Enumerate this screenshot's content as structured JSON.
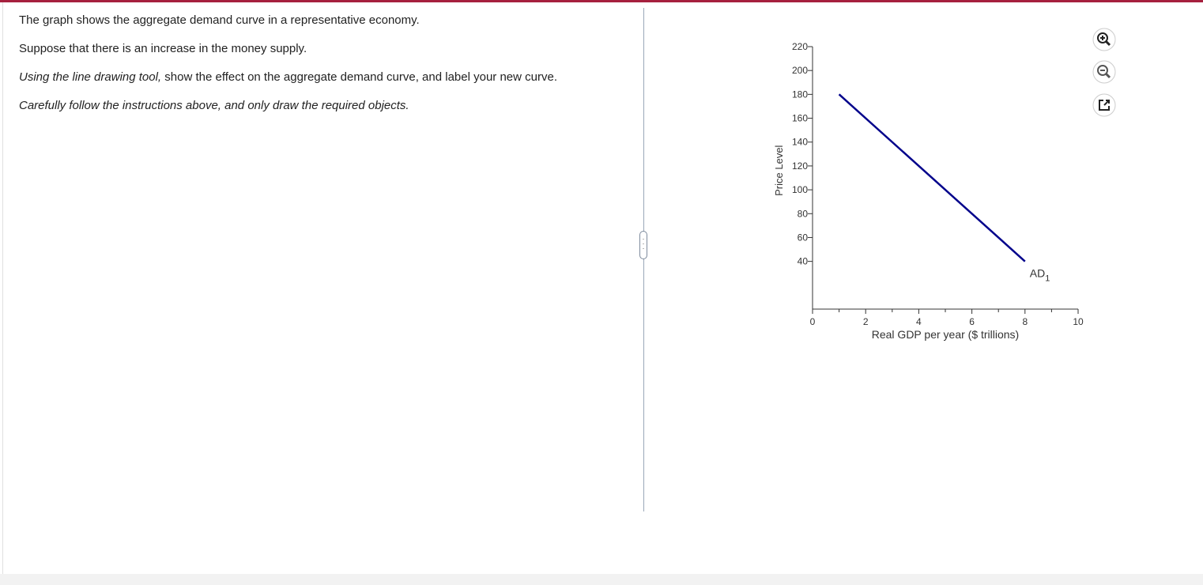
{
  "question": {
    "paragraphs": [
      {
        "parts": [
          {
            "text": "The graph shows the aggregate demand curve in a representative economy.",
            "italic": false
          }
        ]
      },
      {
        "parts": [
          {
            "text": "Suppose that there is an increase in the money supply.",
            "italic": false
          }
        ]
      },
      {
        "parts": [
          {
            "text": "Using the line drawing tool,",
            "italic": true
          },
          {
            "text": " show the effect on the aggregate demand curve, and label your new curve.",
            "italic": false
          }
        ]
      },
      {
        "parts": [
          {
            "text": "Carefully follow the instructions above, and only draw the required objects.",
            "italic": true
          }
        ]
      }
    ]
  },
  "chart_data": {
    "type": "line",
    "x_label": "Real GDP per year ($ trillions)",
    "y_label": "Price Level",
    "xlim": [
      0,
      10
    ],
    "ylim": [
      0,
      220
    ],
    "xticks": [
      0,
      2,
      4,
      6,
      8,
      10
    ],
    "xminor": [
      1,
      3,
      5,
      7,
      9
    ],
    "yticks": [
      40,
      60,
      80,
      100,
      120,
      140,
      160,
      180,
      200,
      220
    ],
    "series": [
      {
        "name": "AD",
        "subscript": "1",
        "color": "#00008b",
        "x": [
          1,
          8
        ],
        "values": [
          180,
          40
        ]
      }
    ]
  }
}
